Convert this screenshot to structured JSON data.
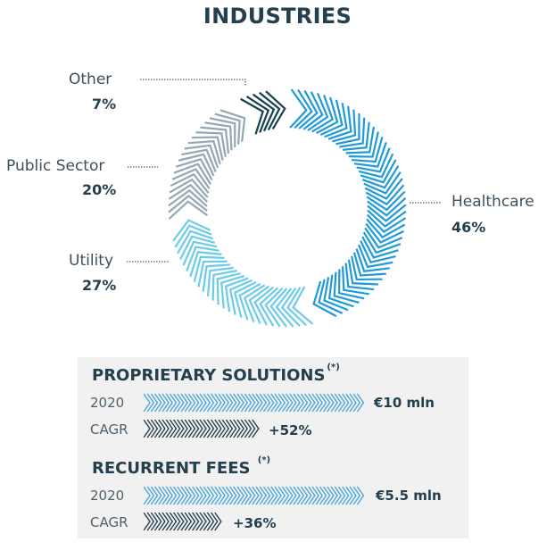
{
  "title": "INDUSTRIES",
  "chart_data": [
    {
      "type": "pie",
      "title": "INDUSTRIES",
      "style": "donut",
      "categories": [
        "Healthcare",
        "Utility",
        "Public Sector",
        "Other"
      ],
      "values": [
        46,
        27,
        20,
        7
      ],
      "labels": [
        "46%",
        "27%",
        "20%",
        "7%"
      ],
      "colors": [
        "#1f9ad6",
        "#6ccbea",
        "#93a8b1",
        "#16404f"
      ]
    },
    {
      "type": "bar",
      "title": "PROPRIETARY SOLUTIONS",
      "footnote_mark": "(*)",
      "categories": [
        "2020",
        "CAGR"
      ],
      "value_labels": [
        "€10 mln",
        "+52%"
      ],
      "bar_fraction": [
        1.0,
        0.52
      ],
      "colors": [
        "#4aa6df",
        "#24404f"
      ]
    },
    {
      "type": "bar",
      "title": "RECURRENT FEES",
      "footnote_mark": "(*)",
      "categories": [
        "2020",
        "CAGR"
      ],
      "value_labels": [
        "€5.5 mln",
        "+36%"
      ],
      "bar_fraction": [
        1.0,
        0.36
      ],
      "colors": [
        "#4aa6df",
        "#24404f"
      ]
    }
  ]
}
